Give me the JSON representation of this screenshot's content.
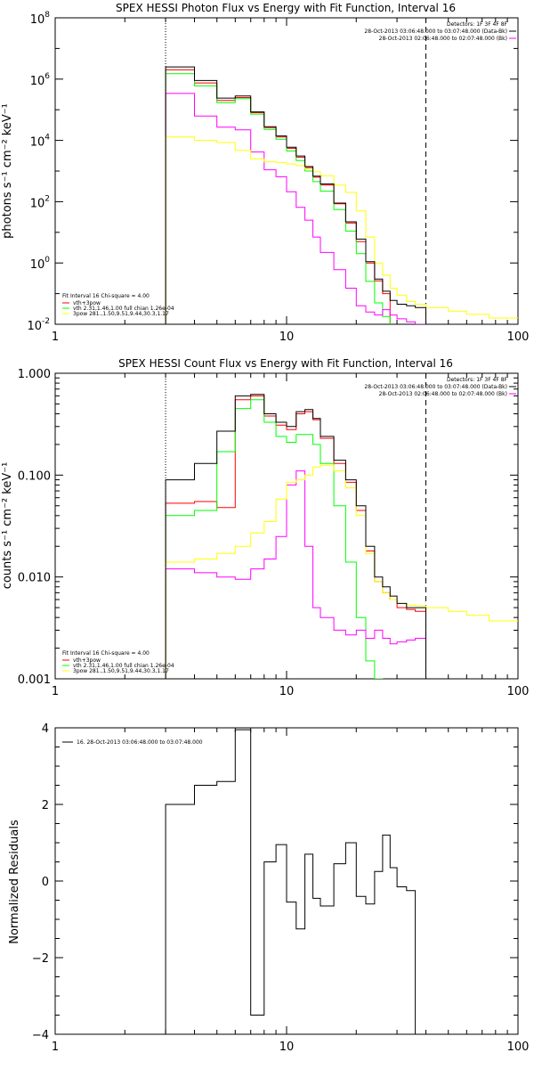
{
  "chart_data": [
    {
      "type": "line",
      "step": true,
      "title": "SPEX HESSI Photon Flux vs Energy with Fit Function, Interval 16",
      "ylabel": "photons s⁻¹ cm⁻² keV⁻¹",
      "xlabel": "",
      "xscale": "log",
      "yscale": "log",
      "xlim": [
        1,
        100
      ],
      "ylim": [
        0.01,
        100000000
      ],
      "x_tick_labels": [
        "1",
        "10",
        "100"
      ],
      "y_tick_labels": [
        {
          "base": "10",
          "exp": "-2"
        },
        {
          "base": "10",
          "exp": "0"
        },
        {
          "base": "10",
          "exp": "2"
        },
        {
          "base": "10",
          "exp": "4"
        },
        {
          "base": "10",
          "exp": "6"
        },
        {
          "base": "10",
          "exp": "8"
        }
      ],
      "top_right_text": [
        "Detectors: 1F 3F 4F 8F",
        "28-Oct-2013 03:06:48.000 to 03:07:48.000 (Data-Bk)",
        "28-Oct-2013 02:06:48.000 to 02:07:48.000 (Bk)"
      ],
      "fit_text": [
        "Fit Interval 16   Chi-square = 4.00",
        "vth+3pow",
        "vth 2.31,1.46,1.00  full chian 1.26e-04",
        "3pow 281.,1.50,9.51,9.44,30.3,1.17"
      ],
      "vlines": [
        {
          "x": 3,
          "style": "dotted"
        },
        {
          "x": 40,
          "style": "dashed"
        }
      ],
      "edges": [
        3,
        4,
        5,
        6,
        7,
        8,
        9,
        10,
        11,
        12,
        13,
        14,
        16,
        18,
        20,
        22,
        24,
        26,
        28,
        30,
        33,
        36,
        40
      ],
      "series": [
        {
          "name": "Data",
          "color": "#000000",
          "values": [
            2500000,
            900000,
            240000,
            280000,
            85000,
            28000,
            14000,
            6000,
            3100,
            1400,
            680,
            380,
            90,
            22,
            6,
            1.1,
            0.3,
            0.12,
            0.06,
            0.045,
            0.04,
            0.035
          ]
        },
        {
          "color": "#ff0000",
          "values": [
            2000000,
            750000,
            200000,
            250000,
            80000,
            26000,
            13000,
            5500,
            2800,
            1300,
            630,
            350,
            85,
            20,
            5,
            1.0,
            0.26,
            0.1
          ]
        },
        {
          "color": "#00ff00",
          "values": [
            1500000,
            600000,
            170000,
            230000,
            72000,
            23000,
            11000,
            4500,
            2200,
            1000,
            450,
            220,
            55,
            11,
            2,
            0.25,
            0.05,
            0.018
          ]
        },
        {
          "color": "#ff00ff",
          "values": [
            340000,
            62000,
            27000,
            22000,
            4200,
            1100,
            650,
            210,
            65,
            25,
            7,
            2.2,
            0.6,
            0.15,
            0.04,
            0.025,
            0.02,
            0.03,
            0.02,
            0.015,
            0.012,
            0.01
          ]
        },
        {
          "color": "#ffff00",
          "edges": [
            3,
            4,
            5,
            6,
            7,
            8,
            9,
            10,
            11,
            12,
            13,
            14,
            16,
            18,
            20,
            22,
            24,
            26,
            28,
            30,
            33,
            36,
            40,
            50,
            60,
            75,
            100
          ],
          "values": [
            13000,
            10000,
            8500,
            4700,
            2500,
            2000,
            1900,
            1700,
            1500,
            1200,
            950,
            700,
            350,
            200,
            50,
            7,
            1,
            0.4,
            0.15,
            0.09,
            0.055,
            0.045,
            0.035,
            0.027,
            0.021,
            0.016
          ]
        }
      ]
    },
    {
      "type": "line",
      "step": true,
      "title": "SPEX HESSI Count Flux vs Energy with Fit Function, Interval 16",
      "ylabel": "counts s⁻¹ cm⁻² keV⁻¹",
      "xlabel": "",
      "xscale": "log",
      "yscale": "log",
      "xlim": [
        1,
        100
      ],
      "ylim": [
        0.001,
        1
      ],
      "x_tick_labels": [
        "1",
        "10",
        "100"
      ],
      "y_tick_labels": [
        "0.001",
        "0.010",
        "0.100",
        "1.000"
      ],
      "top_right_text": [
        "Detectors: 1F 3F 4F 8F",
        "28-Oct-2013 03:06:48.000 to 03:07:48.000 (Data-Bk)",
        "28-Oct-2013 02:06:48.000 to 02:07:48.000 (Bk)"
      ],
      "fit_text": [
        "Fit Interval 16   Chi-square = 4.00",
        "vth+3pow",
        "vth 2.31,1.46,1.00  full chian 1.26e-04",
        "3pow 281.,1.50,9.51,9.44,30.3,1.17"
      ],
      "vlines": [
        {
          "x": 3,
          "style": "dotted"
        },
        {
          "x": 40,
          "style": "dashed"
        }
      ],
      "edges": [
        3,
        4,
        5,
        6,
        7,
        8,
        9,
        10,
        11,
        12,
        13,
        14,
        16,
        18,
        20,
        22,
        24,
        26,
        28,
        30,
        33,
        36,
        40
      ],
      "series": [
        {
          "name": "Data",
          "color": "#000000",
          "values": [
            0.09,
            0.13,
            0.27,
            0.6,
            0.62,
            0.4,
            0.33,
            0.3,
            0.42,
            0.44,
            0.36,
            0.24,
            0.14,
            0.09,
            0.05,
            0.02,
            0.01,
            0.008,
            0.0065,
            0.0055,
            0.005,
            0.005
          ]
        },
        {
          "color": "#ff0000",
          "values": [
            0.053,
            0.055,
            0.048,
            0.55,
            0.6,
            0.38,
            0.31,
            0.28,
            0.4,
            0.42,
            0.35,
            0.23,
            0.13,
            0.085,
            0.045,
            0.018,
            0.009,
            0.007,
            0.006,
            0.005,
            0.0048,
            0.0046
          ]
        },
        {
          "color": "#00ff00",
          "values": [
            0.04,
            0.045,
            0.17,
            0.45,
            0.55,
            0.33,
            0.24,
            0.21,
            0.25,
            0.25,
            0.2,
            0.13,
            0.05,
            0.014,
            0.004,
            0.0015,
            0.001
          ]
        },
        {
          "color": "#ff00ff",
          "values": [
            0.012,
            0.011,
            0.01,
            0.0095,
            0.012,
            0.015,
            0.025,
            0.08,
            0.11,
            0.02,
            0.005,
            0.004,
            0.003,
            0.0027,
            0.003,
            0.0025,
            0.003,
            0.0025,
            0.0022,
            0.0023,
            0.0024,
            0.0025
          ]
        },
        {
          "color": "#ffff00",
          "edges": [
            3,
            4,
            5,
            6,
            7,
            8,
            9,
            10,
            11,
            12,
            13,
            14,
            16,
            18,
            20,
            22,
            24,
            26,
            28,
            30,
            33,
            36,
            40,
            50,
            60,
            75,
            100
          ],
          "values": [
            0.014,
            0.015,
            0.017,
            0.02,
            0.027,
            0.035,
            0.058,
            0.085,
            0.09,
            0.1,
            0.12,
            0.125,
            0.11,
            0.075,
            0.04,
            0.017,
            0.009,
            0.007,
            0.006,
            0.0055,
            0.0053,
            0.0052,
            0.005,
            0.0046,
            0.0042,
            0.0037
          ]
        }
      ]
    },
    {
      "type": "line",
      "step": true,
      "title": "",
      "ylabel": "Normalized Residuals",
      "xlabel": "",
      "xscale": "log",
      "yscale": "linear",
      "xlim": [
        1,
        100
      ],
      "ylim": [
        -4,
        4
      ],
      "x_tick_labels": [
        "1",
        "10",
        "100"
      ],
      "y_tick_values": [
        -4,
        -2,
        0,
        2,
        4
      ],
      "legend_text": "16. 28-Oct-2013 03:06:48.000 to 03:07:48.000",
      "edges": [
        3,
        4,
        5,
        6,
        7,
        8,
        9,
        10,
        11,
        12,
        13,
        14,
        16,
        18,
        20,
        22,
        24,
        26,
        28,
        30,
        33,
        36,
        40
      ],
      "series": [
        {
          "color": "#000000",
          "values": [
            2.0,
            2.5,
            2.6,
            3.95,
            -3.5,
            0.5,
            0.95,
            -0.55,
            -1.25,
            0.7,
            -0.45,
            -0.65,
            0.45,
            1.0,
            -0.4,
            -0.6,
            0.25,
            1.2,
            0.35,
            -0.15,
            -0.25
          ]
        }
      ]
    }
  ]
}
